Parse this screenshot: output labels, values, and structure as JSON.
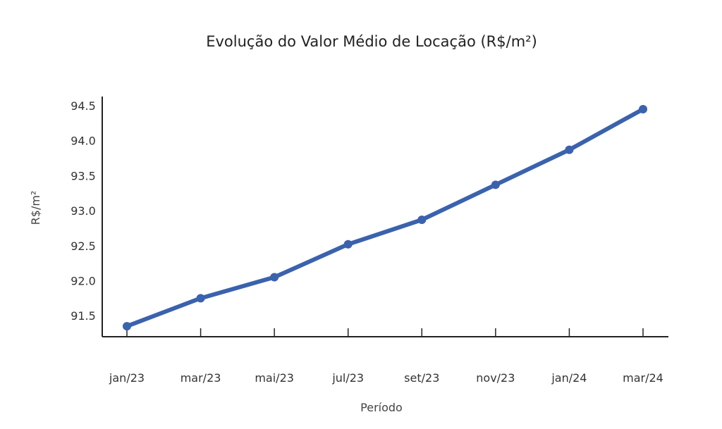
{
  "chart_data": {
    "type": "line",
    "title": "Evolução do Valor Médio de Locação (R$/m²)",
    "xlabel": "Período",
    "ylabel": "R$/m²",
    "categories": [
      "jan/23",
      "mar/23",
      "mai/23",
      "jul/23",
      "set/23",
      "nov/23",
      "jan/24",
      "mar/24"
    ],
    "series": [
      {
        "values": [
          91.35,
          91.75,
          92.05,
          92.52,
          92.87,
          93.37,
          93.87,
          94.45
        ]
      }
    ],
    "y_ticks": [
      "91.5",
      "92.0",
      "92.5",
      "93.0",
      "93.5",
      "94.0",
      "94.5"
    ],
    "ylim": [
      91.2,
      94.5
    ],
    "grid": false,
    "legend": "none",
    "colors": {
      "line": "#3a62ad",
      "axis": "#222222"
    }
  }
}
